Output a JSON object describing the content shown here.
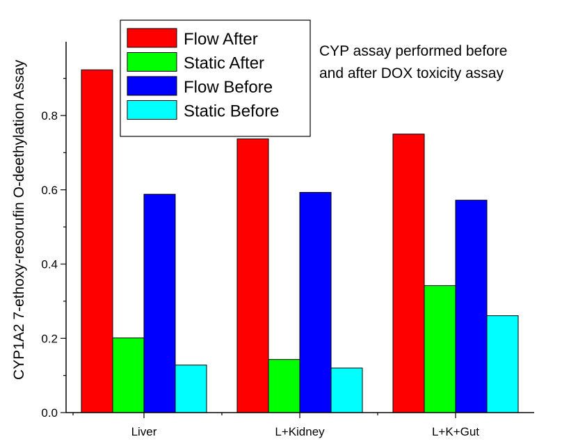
{
  "chart_data": {
    "type": "bar",
    "title": "",
    "xlabel": "",
    "ylabel": "CYP1A2 7-ethoxy-resorufin O-deethylation Assay",
    "ylim": [
      0,
      0.97
    ],
    "yticks": [
      "0.0",
      "0.2",
      "0.4",
      "0.6",
      "0.8"
    ],
    "categories": [
      "Liver",
      "L+Kidney",
      "L+K+Gut"
    ],
    "series": [
      {
        "name": "Flow After",
        "color": "#ff0000",
        "values": [
          0.923,
          0.737,
          0.75
        ]
      },
      {
        "name": "Static After",
        "color": "#00ff00",
        "values": [
          0.201,
          0.143,
          0.342
        ]
      },
      {
        "name": "Flow Before",
        "color": "#0000ff",
        "values": [
          0.588,
          0.593,
          0.572
        ]
      },
      {
        "name": "Static Before",
        "color": "#00ffff",
        "values": [
          0.128,
          0.12,
          0.261
        ]
      }
    ],
    "legend_placement": "top-left",
    "annotation": [
      "CYP assay performed before",
      "and after DOX toxicity assay"
    ],
    "grid": false
  }
}
